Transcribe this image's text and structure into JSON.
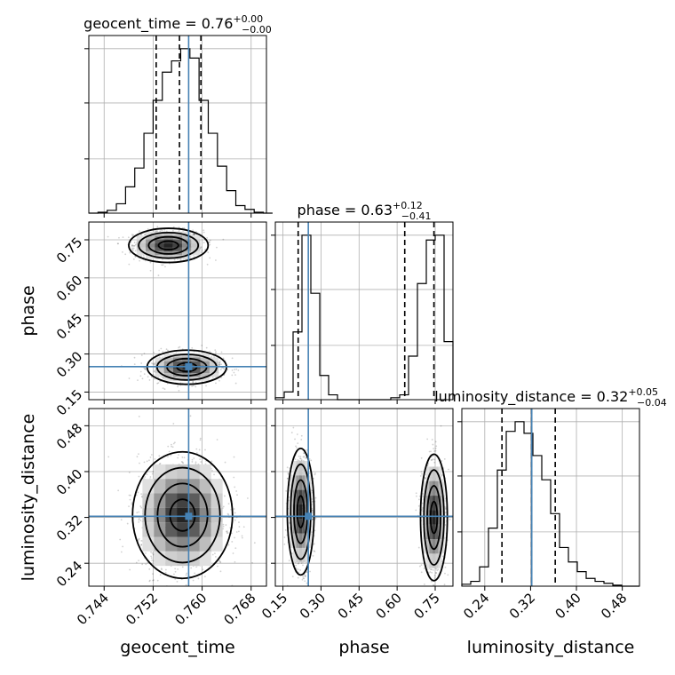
{
  "chart_data": {
    "type": "corner",
    "truth_color": "#4682b4",
    "parameters": [
      {
        "name": "geocent_time",
        "axis_label": "geocent_time",
        "range": [
          0.7415,
          0.7705
        ],
        "ticks": [
          "0.744",
          "0.752",
          "0.760",
          "0.768"
        ],
        "tick_values": [
          0.744,
          0.752,
          0.76,
          0.768
        ],
        "title": {
          "prefix": "geocent_time = 0.76",
          "plus": "+0.00",
          "minus": "−0.00"
        },
        "quantiles": [
          0.7525,
          0.7563,
          0.7598
        ],
        "truth": 0.7578,
        "hist_bin_edges": [
          0.7415,
          0.743,
          0.7445,
          0.746,
          0.7475,
          0.749,
          0.7505,
          0.752,
          0.7535,
          0.755,
          0.7565,
          0.758,
          0.7595,
          0.761,
          0.7625,
          0.764,
          0.7655,
          0.767,
          0.7685,
          0.77,
          0.7715
        ],
        "hist_counts": [
          0,
          1,
          3,
          10,
          28,
          48,
          85,
          120,
          150,
          162,
          175,
          165,
          120,
          85,
          50,
          24,
          8,
          4,
          1,
          0
        ]
      },
      {
        "name": "phase",
        "axis_label": "phase",
        "range": [
          0.12,
          0.82
        ],
        "ticks": [
          "0.15",
          "0.30",
          "0.45",
          "0.60",
          "0.75"
        ],
        "tick_values": [
          0.15,
          0.3,
          0.45,
          0.6,
          0.75
        ],
        "title": {
          "prefix": "phase = 0.63",
          "plus": "+0.12",
          "minus": "−0.41"
        },
        "quantiles": [
          0.21,
          0.63,
          0.745
        ],
        "truth": 0.25,
        "hist_bin_edges": [
          0.12,
          0.155,
          0.19,
          0.225,
          0.26,
          0.295,
          0.33,
          0.365,
          0.4,
          0.435,
          0.47,
          0.505,
          0.54,
          0.575,
          0.61,
          0.645,
          0.68,
          0.715,
          0.75,
          0.785,
          0.82
        ],
        "hist_counts": [
          2,
          8,
          70,
          170,
          110,
          25,
          5,
          0,
          0,
          0,
          0,
          0,
          0,
          2,
          5,
          45,
          120,
          165,
          170,
          60
        ]
      },
      {
        "name": "luminosity_distance",
        "axis_label": "luminosity_distance",
        "range": [
          0.2,
          0.51
        ],
        "ticks": [
          "0.24",
          "0.32",
          "0.40",
          "0.48"
        ],
        "tick_values": [
          0.24,
          0.32,
          0.4,
          0.48
        ],
        "title": {
          "prefix": "luminosity_distance = 0.32",
          "plus": "+0.05",
          "minus": "−0.04"
        },
        "quantiles": [
          0.27,
          0.322,
          0.363
        ],
        "truth": 0.322,
        "hist_bin_edges": [
          0.2,
          0.2155,
          0.231,
          0.2465,
          0.262,
          0.2775,
          0.293,
          0.3085,
          0.324,
          0.3395,
          0.355,
          0.3705,
          0.386,
          0.4015,
          0.417,
          0.4325,
          0.448,
          0.4635,
          0.479,
          0.4945,
          0.51
        ],
        "hist_counts": [
          2,
          5,
          20,
          60,
          120,
          160,
          170,
          158,
          135,
          110,
          75,
          40,
          25,
          15,
          8,
          5,
          3,
          1,
          0,
          0
        ]
      }
    ],
    "pairs": [
      {
        "x": "geocent_time",
        "y": "phase",
        "truth": [
          0.7578,
          0.25
        ],
        "blobs": [
          {
            "cx": 0.7545,
            "cy": 0.728,
            "sx": 0.0027,
            "sy": 0.028
          },
          {
            "cx": 0.7575,
            "cy": 0.248,
            "sx": 0.0027,
            "sy": 0.028
          }
        ]
      },
      {
        "x": "geocent_time",
        "y": "luminosity_distance",
        "truth": [
          0.7578,
          0.322
        ],
        "blobs": [
          {
            "cx": 0.7568,
            "cy": 0.324,
            "sx": 0.0034,
            "sy": 0.046
          }
        ]
      },
      {
        "x": "phase",
        "y": "luminosity_distance",
        "truth": [
          0.25,
          0.322
        ],
        "blobs": [
          {
            "cx": 0.22,
            "cy": 0.33,
            "sx": 0.022,
            "sy": 0.046
          },
          {
            "cx": 0.745,
            "cy": 0.32,
            "sx": 0.022,
            "sy": 0.046
          }
        ]
      }
    ],
    "grid": true
  }
}
